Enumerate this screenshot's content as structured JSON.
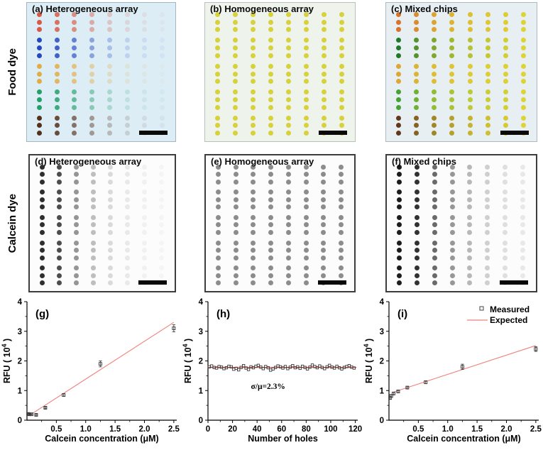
{
  "row_labels": [
    "Food dye",
    "Calcein dye"
  ],
  "dot_panels": [
    {
      "id": "a",
      "title": "(a) Heterogeneous array",
      "bg": "#dcedf6",
      "border": "#a3b7c2",
      "border_width": 1,
      "group_colors": [
        "#d85a45",
        "#2547c2",
        "#e2ac44",
        "#22a068",
        "#55301b"
      ],
      "col_opacity": [
        1,
        0.85,
        0.65,
        0.45,
        0.28,
        0.16,
        0.09,
        0.05
      ],
      "cols": 8,
      "rows_per_group": 3,
      "scalebar": true
    },
    {
      "id": "b",
      "title": "(b) Homogeneous array",
      "bg": "#eef3ec",
      "border": "#b7c0ba",
      "border_width": 1,
      "group_colors": [
        "#d7d13b",
        "#d7d13b",
        "#d7d13b",
        "#d7d13b",
        "#d7d13b"
      ],
      "col_opacity": [
        1,
        1,
        1,
        1,
        1,
        1,
        1,
        1
      ],
      "cols": 8,
      "rows_per_group": 3,
      "scalebar": true
    },
    {
      "id": "c",
      "title": "(c) Mixed chips",
      "bg": "#e7eff3",
      "border": "#a9bac2",
      "border_width": 1,
      "group_colors": [
        "#d9722b",
        "#1f7a28",
        "#dca733",
        "#44a433",
        "#63381a"
      ],
      "end_color": "#ddd334",
      "blend_t": [
        0,
        0.28,
        0.5,
        0.68,
        0.8,
        0.88,
        0.94,
        1
      ],
      "cols": 8,
      "rows_per_group": 3,
      "scalebar": true
    },
    {
      "id": "d",
      "title": "(d) Heterogeneous array",
      "bg": "#fcfcfc",
      "border": "#3d3d3d",
      "border_width": 2,
      "group_colors": [
        "#2e2e2e",
        "#2e2e2e",
        "#2e2e2e",
        "#2e2e2e",
        "#2e2e2e"
      ],
      "col_opacity": [
        1,
        0.85,
        0.5,
        0.3,
        0.16,
        0.09,
        0.05,
        0.03
      ],
      "cols": 8,
      "rows_per_group": 3,
      "scalebar": true
    },
    {
      "id": "e",
      "title": "(e) Homogeneous array",
      "bg": "#fcfcfc",
      "border": "#3d3d3d",
      "border_width": 2,
      "group_colors": [
        "#8c8c8c",
        "#8c8c8c",
        "#8c8c8c",
        "#8c8c8c",
        "#8c8c8c"
      ],
      "col_opacity": [
        1,
        1,
        1,
        1,
        1,
        1,
        1,
        1
      ],
      "cols": 8,
      "rows_per_group": 3,
      "scalebar": true
    },
    {
      "id": "f",
      "title": "(f) Mixed chips",
      "bg": "#fcfcfc",
      "border": "#3d3d3d",
      "border_width": 2,
      "group_colors": [
        "#1c1c1c",
        "#1c1c1c",
        "#1c1c1c",
        "#1c1c1c",
        "#1c1c1c"
      ],
      "col_opacity": [
        1,
        0.9,
        0.65,
        0.45,
        0.3,
        0.2,
        0.13,
        0.09
      ],
      "cols": 8,
      "rows_per_group": 3,
      "scalebar": true
    }
  ],
  "chart_data": [
    {
      "id": "g",
      "type": "scatter",
      "panel_label": "(g)",
      "xlabel": "Calcein concentration (μM)",
      "ylabel": {
        "prefix": "RFU ( 10",
        "sup": "4",
        "suffix": " )"
      },
      "xlim": [
        0,
        2.55
      ],
      "ylim": [
        0,
        4
      ],
      "xticks": [
        0.5,
        1.0,
        1.5,
        2.0,
        2.5
      ],
      "xtick_labels": [
        "0.5",
        "1.0",
        "1.5",
        "2.0",
        "2.5"
      ],
      "xminors": [
        0.25,
        0.75,
        1.25,
        1.75,
        2.25
      ],
      "yticks": [
        0,
        1,
        2,
        3,
        4
      ],
      "ytick_labels": [
        "0",
        "1",
        "2",
        "3",
        "4"
      ],
      "yminors": [
        0.5,
        1.5,
        2.5,
        3.5
      ],
      "grid": false,
      "series": [
        {
          "name": "Measured",
          "type": "scatter",
          "marker": 4,
          "x": [
            0.02,
            0.039,
            0.078,
            0.156,
            0.3125,
            0.625,
            1.25,
            2.5
          ],
          "y": [
            0.21,
            0.2,
            0.2,
            0.18,
            0.42,
            0.85,
            1.9,
            3.1
          ],
          "yerr": [
            0.02,
            0.02,
            0.02,
            0.02,
            0.03,
            0.04,
            0.1,
            0.12
          ]
        },
        {
          "name": "Expected",
          "type": "line",
          "color": "#f0807a",
          "x": [
            0.07,
            2.5
          ],
          "y": [
            0.2,
            3.3
          ]
        }
      ]
    },
    {
      "id": "h",
      "type": "scatter",
      "panel_label": "(h)",
      "xlabel": "Number of holes",
      "ylabel": {
        "prefix": "RFU ( 10",
        "sup": "4",
        "suffix": " )"
      },
      "xlim": [
        0,
        122
      ],
      "ylim": [
        0,
        4
      ],
      "xticks": [
        0,
        20,
        40,
        60,
        80,
        100,
        120
      ],
      "xtick_labels": [
        "0",
        "20",
        "40",
        "60",
        "80",
        "100",
        "120"
      ],
      "xminors": [
        10,
        30,
        50,
        70,
        90,
        110
      ],
      "yticks": [
        0,
        1,
        2,
        3,
        4
      ],
      "ytick_labels": [
        "0",
        "1",
        "2",
        "3",
        "4"
      ],
      "yminors": [
        0.5,
        1.5,
        2.5,
        3.5
      ],
      "grid": false,
      "annotation": {
        "text": "σ/μ=2.3%",
        "x": 35,
        "y": 1.05
      },
      "series": [
        {
          "name": "Measured",
          "type": "scatter",
          "marker": 3.4,
          "x": [
            1,
            3,
            5,
            7,
            9,
            11,
            13,
            15,
            17,
            19,
            21,
            23,
            25,
            27,
            29,
            31,
            33,
            35,
            37,
            39,
            41,
            43,
            45,
            47,
            49,
            51,
            53,
            55,
            57,
            59,
            61,
            63,
            65,
            67,
            69,
            71,
            73,
            75,
            77,
            79,
            81,
            83,
            85,
            87,
            89,
            91,
            93,
            95,
            97,
            99,
            101,
            103,
            105,
            107,
            109,
            111,
            113,
            115,
            117,
            119
          ],
          "y": [
            1.8,
            1.83,
            1.78,
            1.76,
            1.81,
            1.79,
            1.74,
            1.77,
            1.82,
            1.8,
            1.72,
            1.75,
            1.7,
            1.78,
            1.84,
            1.76,
            1.71,
            1.8,
            1.77,
            1.82,
            1.85,
            1.79,
            1.74,
            1.81,
            1.77,
            1.69,
            1.73,
            1.78,
            1.83,
            1.8,
            1.76,
            1.81,
            1.74,
            1.79,
            1.84,
            1.77,
            1.8,
            1.75,
            1.82,
            1.78,
            1.73,
            1.79,
            1.86,
            1.81,
            1.77,
            1.83,
            1.78,
            1.74,
            1.8,
            1.85,
            1.79,
            1.76,
            1.82,
            1.77,
            1.73,
            1.78,
            1.81,
            1.84,
            1.79,
            1.76
          ]
        },
        {
          "name": "Expected",
          "type": "line",
          "color": "#e84343",
          "x": [
            0,
            121
          ],
          "y": [
            1.78,
            1.78
          ]
        }
      ]
    },
    {
      "id": "i",
      "type": "scatter",
      "panel_label": "(i)",
      "xlabel": "Calcein concentration (μM)",
      "ylabel": {
        "prefix": "RFU ( 10",
        "sup": "4",
        "suffix": " )"
      },
      "xlim": [
        0,
        2.55
      ],
      "ylim": [
        0,
        4
      ],
      "xticks": [
        0.5,
        1.0,
        1.5,
        2.0,
        2.5
      ],
      "xtick_labels": [
        "0.5",
        "1.0",
        "1.5",
        "2.0",
        "2.5"
      ],
      "xminors": [
        0.25,
        0.75,
        1.25,
        1.75,
        2.25
      ],
      "yticks": [
        0,
        1,
        2,
        3,
        4
      ],
      "ytick_labels": [
        "0",
        "1",
        "2",
        "3",
        "4"
      ],
      "yminors": [
        0.5,
        1.5,
        2.5,
        3.5
      ],
      "grid": false,
      "legend": [
        "Measured",
        "Expected"
      ],
      "series": [
        {
          "name": "Measured",
          "type": "scatter",
          "marker": 4,
          "x": [
            0.02,
            0.039,
            0.078,
            0.156,
            0.3125,
            0.625,
            1.25,
            2.5
          ],
          "y": [
            0.75,
            0.82,
            0.9,
            0.97,
            1.1,
            1.28,
            1.8,
            2.4
          ],
          "yerr": [
            0.04,
            0.04,
            0.04,
            0.04,
            0.04,
            0.05,
            0.09,
            0.08
          ]
        },
        {
          "name": "Expected",
          "type": "line",
          "color": "#f0807a",
          "x": [
            0.08,
            2.5
          ],
          "y": [
            0.95,
            2.52
          ]
        }
      ]
    }
  ],
  "colors": {
    "marker_stroke": "#3a3a3a",
    "axis": "#000000",
    "scalebar": "#0a0a0a"
  }
}
